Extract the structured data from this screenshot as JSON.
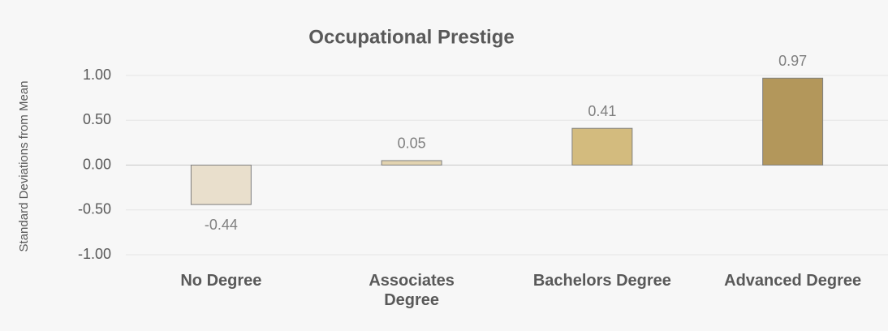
{
  "chart_data": {
    "type": "bar",
    "title": "Occupational Prestige",
    "y_label": "Standard Deviations from Mean",
    "categories": [
      "No Degree",
      "Associates Degree",
      "Bachelors Degree",
      "Advanced Degree"
    ],
    "values": [
      -0.44,
      0.05,
      0.41,
      0.97
    ],
    "colors": [
      "#e9dfcc",
      "#e2d3b0",
      "#d3bb7e",
      "#b3975b"
    ],
    "ylim": [
      -1,
      1
    ],
    "yticks": [
      {
        "value": -1,
        "label": "-1.00"
      },
      {
        "value": -0.5,
        "label": "-0.50"
      },
      {
        "value": 0,
        "label": "0.00"
      },
      {
        "value": 0.5,
        "label": "0.50"
      },
      {
        "value": 1,
        "label": "1.00"
      }
    ],
    "grid": true
  }
}
